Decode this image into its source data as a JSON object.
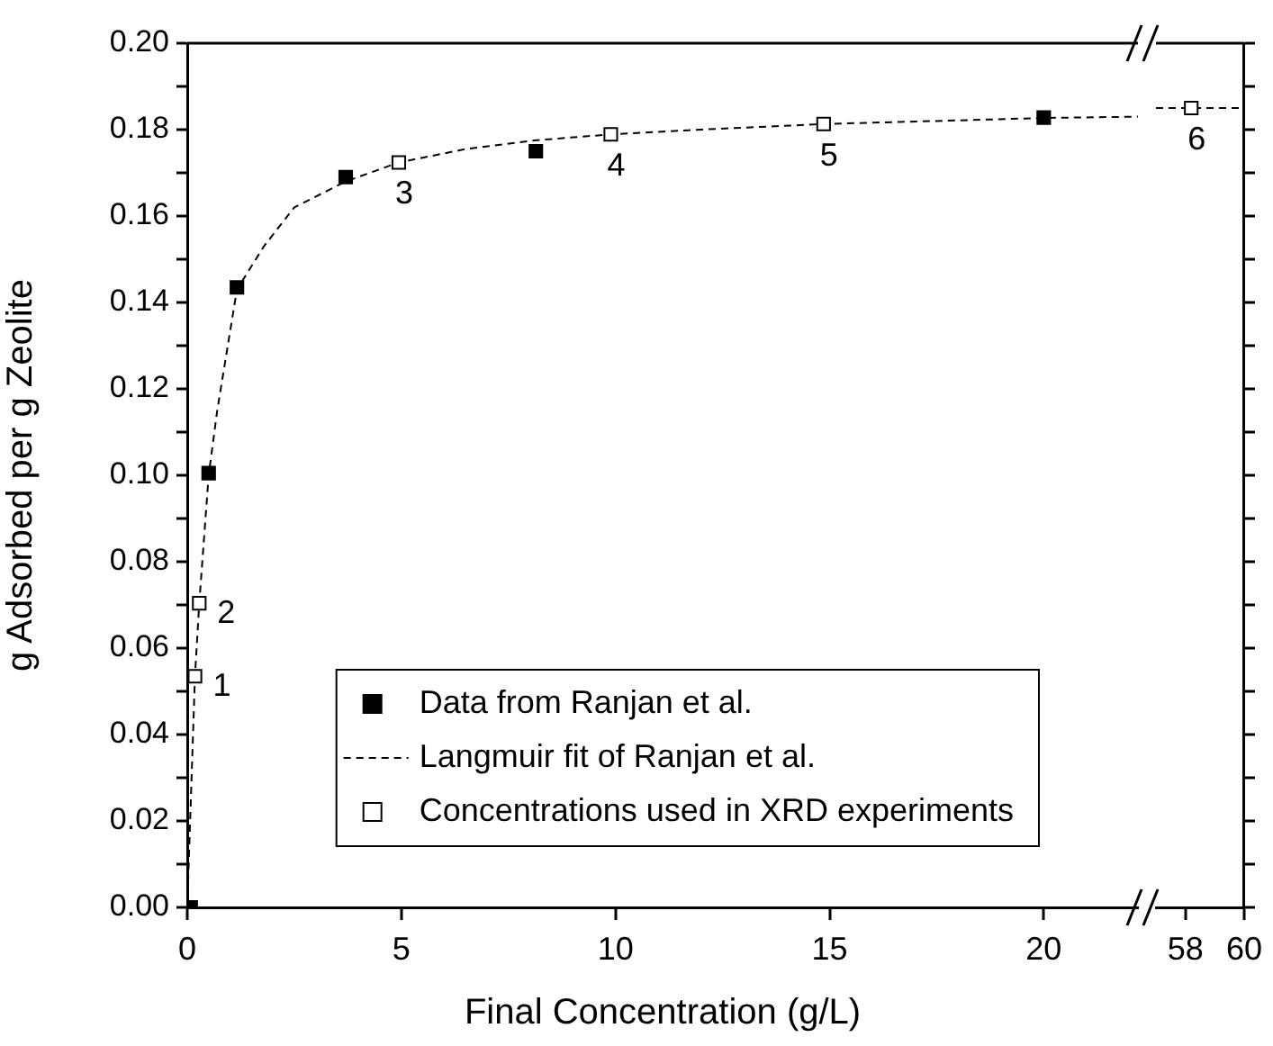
{
  "chart_data": [
    {
      "type": "scatter",
      "xlabel": "Final Concentration (g/L)",
      "ylabel": "g Adsorbed per g Zeolite",
      "xlim": [
        0,
        22.2
      ],
      "xticks": [
        0,
        5,
        10,
        15,
        20
      ],
      "ylim": [
        0,
        0.2
      ],
      "yticks": [
        {
          "value": 0,
          "label": "0.00"
        },
        {
          "value": 0.01,
          "label": null
        },
        {
          "value": 0.02,
          "label": "0.02"
        },
        {
          "value": 0.03,
          "label": null
        },
        {
          "value": 0.04,
          "label": "0.04"
        },
        {
          "value": 0.05,
          "label": null
        },
        {
          "value": 0.06,
          "label": "0.06"
        },
        {
          "value": 0.07,
          "label": null
        },
        {
          "value": 0.08,
          "label": "0.08"
        },
        {
          "value": 0.09,
          "label": null
        },
        {
          "value": 0.1,
          "label": "0.10"
        },
        {
          "value": 0.11,
          "label": null
        },
        {
          "value": 0.12,
          "label": "0.12"
        },
        {
          "value": 0.13,
          "label": null
        },
        {
          "value": 0.14,
          "label": "0.14"
        },
        {
          "value": 0.15,
          "label": null
        },
        {
          "value": 0.16,
          "label": "0.16"
        },
        {
          "value": 0.17,
          "label": null
        },
        {
          "value": 0.18,
          "label": "0.18"
        },
        {
          "value": 0.19,
          "label": null
        },
        {
          "value": 0.2,
          "label": "0.20"
        }
      ],
      "grid": false,
      "legend": "bottom right",
      "marker": "square",
      "series": [
        {
          "name": "Data from Ranjan et al.",
          "color": "#000000",
          "x": [
            0.08,
            0.5,
            1.16,
            3.7,
            8.14,
            20
          ],
          "values": [
            0,
            0.1005,
            0.1435,
            0.169,
            0.175,
            0.1828
          ]
        },
        {
          "name": "Langmuir fit of Ranjan et al.",
          "type": "line",
          "marker": "none",
          "line_style": "dashed",
          "color": "#000000",
          "x": [
            0,
            0.18,
            0.28,
            0.5,
            0.7,
            1.16,
            1.79,
            2.5,
            3.7,
            4.94,
            6.5,
            8.1,
            9.89,
            12,
            14.86,
            17.5,
            20,
            22.2
          ],
          "values": [
            0,
            0.0535,
            0.0704,
            0.1,
            0.115,
            0.143,
            0.153,
            0.162,
            0.168,
            0.1724,
            0.1755,
            0.1775,
            0.1789,
            0.18,
            0.1813,
            0.182,
            0.1827,
            0.183
          ]
        },
        {
          "name": "Concentrations used in XRD experiments",
          "color": "#ffffff",
          "x": [
            0.18,
            0.28,
            4.94,
            9.89,
            14.86
          ],
          "values": [
            0.0535,
            0.0704,
            0.1724,
            0.1789,
            0.1813
          ]
        }
      ],
      "annotations": [
        {
          "text": "1",
          "x": 0.18,
          "y": 0.0535
        },
        {
          "text": "2",
          "x": 0.28,
          "y": 0.0704
        },
        {
          "text": "3",
          "x": 4.94,
          "y": 0.1724
        },
        {
          "text": "4",
          "x": 9.89,
          "y": 0.1789
        },
        {
          "text": "5",
          "x": 14.86,
          "y": 0.1813
        }
      ]
    },
    {
      "type": "scatter",
      "xlim": [
        57,
        60
      ],
      "xticks": [
        58,
        60
      ],
      "ylim": [
        0,
        0.2
      ],
      "tick_labels": "x",
      "yticks": [
        0,
        0.01,
        0.02,
        0.03,
        0.04,
        0.05,
        0.06,
        0.07,
        0.08,
        0.09,
        0.1,
        0.11,
        0.12,
        0.13,
        0.14,
        0.15,
        0.16,
        0.17,
        0.18,
        0.19,
        0.2
      ],
      "grid": false,
      "legend": false,
      "marker": "square",
      "series": [
        {
          "type": "line",
          "marker": "none",
          "line_style": "dashed",
          "color": "#000000",
          "x": [
            57,
            60
          ],
          "values": [
            0.185,
            0.185
          ]
        },
        {
          "color": "#ffffff",
          "x": [
            58.2
          ],
          "values": [
            0.185
          ]
        }
      ],
      "annotations": [
        {
          "text": "6",
          "x": 58.2,
          "y": 0.185
        }
      ]
    }
  ]
}
